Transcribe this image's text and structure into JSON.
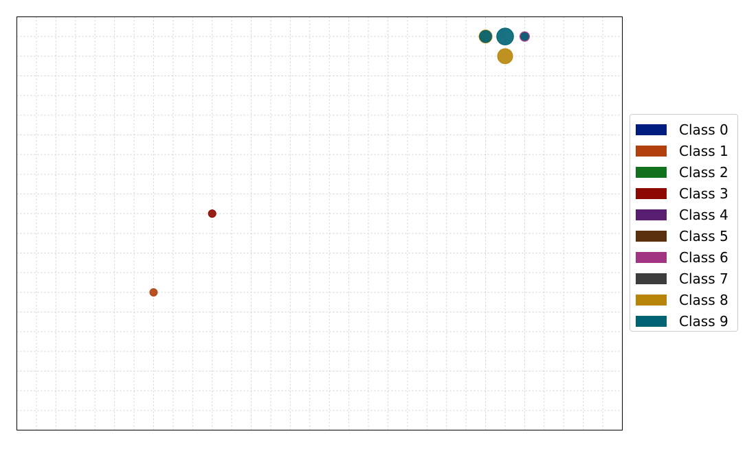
{
  "chart_data": {
    "type": "scatter",
    "title": "",
    "xlabel": "",
    "ylabel": "",
    "xlim": [
      0,
      31
    ],
    "ylim": [
      0,
      21
    ],
    "x_ticks_shown": false,
    "y_ticks_shown": false,
    "grid": true,
    "grid_style": "dotted",
    "legend_placement": "right",
    "classes": [
      {
        "name": "Class 0",
        "color": "#001c7f"
      },
      {
        "name": "Class 1",
        "color": "#b1400d"
      },
      {
        "name": "Class 2",
        "color": "#12711c"
      },
      {
        "name": "Class 3",
        "color": "#8c0800"
      },
      {
        "name": "Class 4",
        "color": "#591e71"
      },
      {
        "name": "Class 5",
        "color": "#592f0d"
      },
      {
        "name": "Class 6",
        "color": "#a23582"
      },
      {
        "name": "Class 7",
        "color": "#3c3c3c"
      },
      {
        "name": "Class 8",
        "color": "#b8850a"
      },
      {
        "name": "Class 9",
        "color": "#006374"
      }
    ],
    "points": [
      {
        "x": 7,
        "y": 7,
        "class": 1,
        "size": 1
      },
      {
        "x": 10,
        "y": 11,
        "class": 3,
        "size": 1
      },
      {
        "x": 24,
        "y": 20,
        "class": 8,
        "size": 3
      },
      {
        "x": 24,
        "y": 20,
        "class": 9,
        "size": 2.5
      },
      {
        "x": 25,
        "y": 19,
        "class": 8,
        "size": 4
      },
      {
        "x": 25,
        "y": 20,
        "class": 9,
        "size": 5
      },
      {
        "x": 26,
        "y": 20,
        "class": 6,
        "size": 1.6
      },
      {
        "x": 26,
        "y": 20,
        "class": 9,
        "size": 1
      }
    ]
  }
}
